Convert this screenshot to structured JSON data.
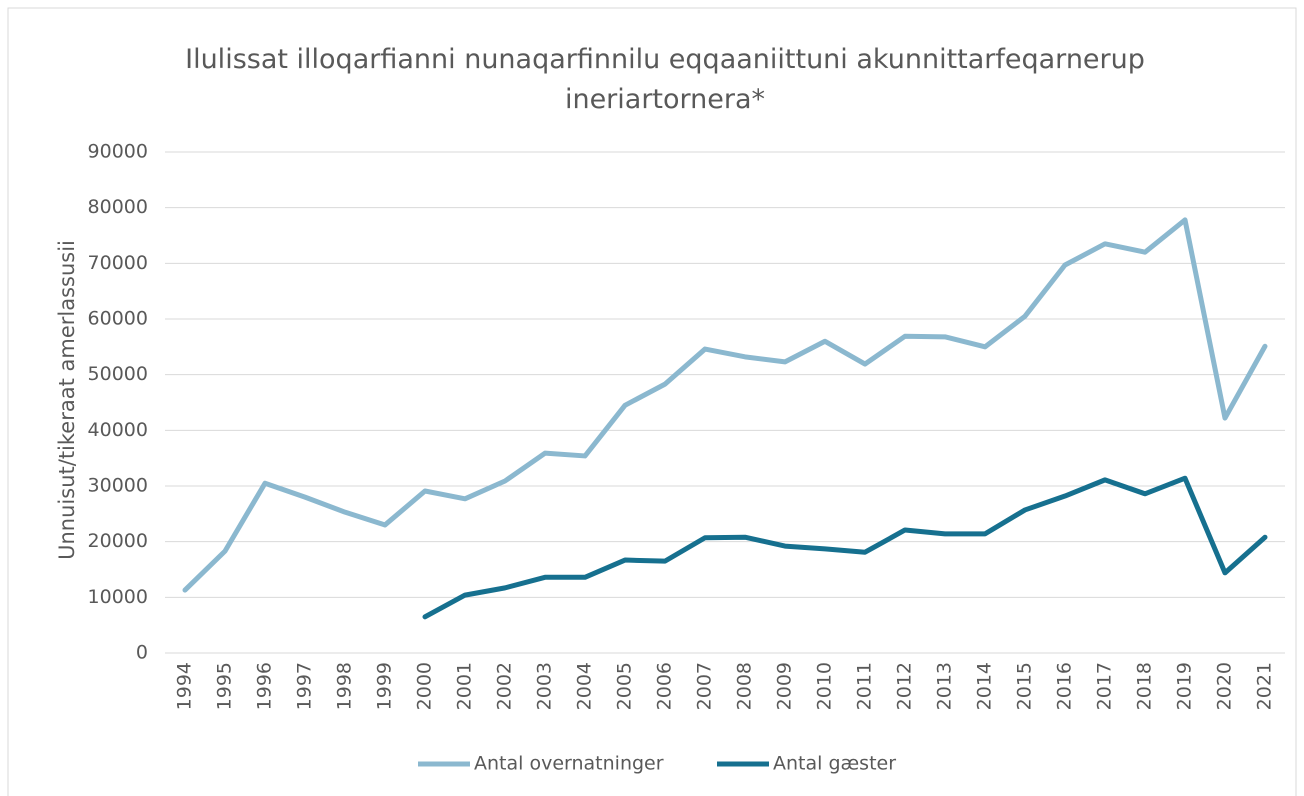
{
  "chart_data": {
    "type": "line",
    "title": "Ilulissat illoqarfianni nunaqarfinnilu eqqaaniittuni akunnittarfeqarnerup ineriartornera*",
    "y_label": "Unnuisut/tikeraat amerlassusii",
    "categories": [
      "1994",
      "1995",
      "1996",
      "1997",
      "1998",
      "1999",
      "2000",
      "2001",
      "2002",
      "2003",
      "2004",
      "2005",
      "2006",
      "2007",
      "2008",
      "2009",
      "2010",
      "2011",
      "2012",
      "2013",
      "2014",
      "2015",
      "2016",
      "2017",
      "2018",
      "2019",
      "2020",
      "2021"
    ],
    "series": [
      {
        "name": "Antal overnatninger",
        "color": "#8bb8cf",
        "values": [
          11300,
          18300,
          30500,
          28000,
          25300,
          23000,
          29100,
          27700,
          30900,
          35900,
          35400,
          44500,
          48300,
          54600,
          53200,
          52300,
          56000,
          51900,
          56900,
          56800,
          55000,
          60500,
          69700,
          73500,
          72000,
          77800,
          42200,
          55100
        ]
      },
      {
        "name": "Antal gæster",
        "color": "#16708f",
        "values": [
          null,
          null,
          null,
          null,
          null,
          null,
          6500,
          10400,
          11700,
          13600,
          13600,
          16700,
          16500,
          20700,
          20800,
          19200,
          18700,
          18100,
          22100,
          21400,
          21400,
          25700,
          28200,
          31100,
          28600,
          31400,
          14400,
          20800
        ]
      }
    ],
    "ylim": [
      0,
      90000
    ],
    "yticks": [
      0,
      10000,
      20000,
      30000,
      40000,
      50000,
      60000,
      70000,
      80000,
      90000
    ],
    "grid": true,
    "legend": "bottom"
  }
}
